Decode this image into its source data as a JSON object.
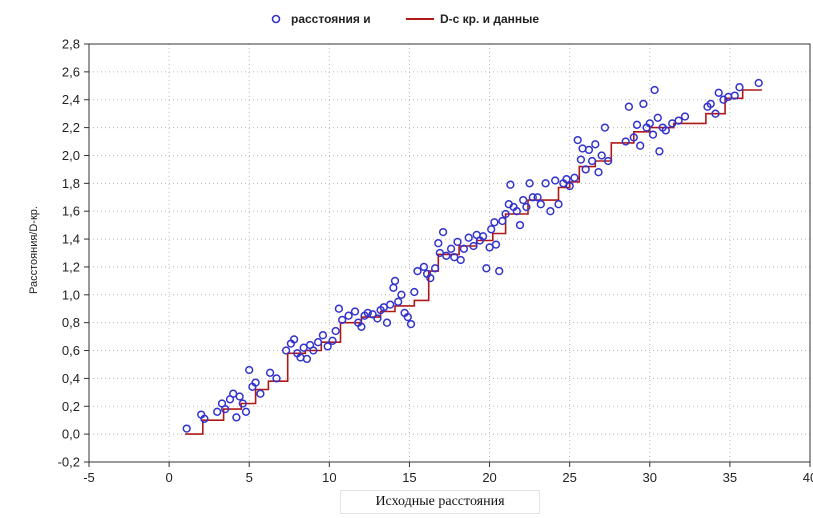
{
  "chart_data": {
    "type": "scatter",
    "title": "",
    "xlabel": "Исходные расстояния",
    "ylabel": "Расстояния/D-кр.",
    "xlim": [
      -5,
      40
    ],
    "ylim": [
      -0.2,
      2.8
    ],
    "xticks": [
      "-5",
      "0",
      "5",
      "10",
      "15",
      "20",
      "25",
      "30",
      "35",
      "40"
    ],
    "yticks": [
      "-0,2",
      "0,0",
      "0,2",
      "0,4",
      "0,6",
      "0,8",
      "1,0",
      "1,2",
      "1,4",
      "1,6",
      "1,8",
      "2,0",
      "2,2",
      "2,4",
      "2,6",
      "2,8"
    ],
    "grid": true,
    "legend_position": "top",
    "colors": {
      "points": "#3333cc",
      "step_line": "#b01818"
    },
    "series": [
      {
        "name": "расстояния и",
        "kind": "points",
        "points": [
          [
            1.1,
            0.04
          ],
          [
            2.0,
            0.14
          ],
          [
            2.2,
            0.11
          ],
          [
            3.0,
            0.16
          ],
          [
            3.3,
            0.22
          ],
          [
            3.5,
            0.18
          ],
          [
            3.8,
            0.25
          ],
          [
            4.0,
            0.29
          ],
          [
            4.2,
            0.12
          ],
          [
            4.4,
            0.27
          ],
          [
            4.6,
            0.22
          ],
          [
            4.8,
            0.16
          ],
          [
            5.0,
            0.46
          ],
          [
            5.2,
            0.34
          ],
          [
            5.4,
            0.37
          ],
          [
            5.7,
            0.29
          ],
          [
            6.3,
            0.44
          ],
          [
            6.7,
            0.4
          ],
          [
            7.3,
            0.6
          ],
          [
            7.6,
            0.65
          ],
          [
            7.8,
            0.68
          ],
          [
            8.0,
            0.58
          ],
          [
            8.2,
            0.55
          ],
          [
            8.4,
            0.62
          ],
          [
            8.6,
            0.54
          ],
          [
            8.8,
            0.64
          ],
          [
            9.0,
            0.6
          ],
          [
            9.3,
            0.66
          ],
          [
            9.6,
            0.71
          ],
          [
            9.9,
            0.63
          ],
          [
            10.2,
            0.67
          ],
          [
            10.4,
            0.74
          ],
          [
            10.6,
            0.9
          ],
          [
            10.8,
            0.82
          ],
          [
            11.2,
            0.85
          ],
          [
            11.6,
            0.88
          ],
          [
            11.8,
            0.8
          ],
          [
            12.0,
            0.77
          ],
          [
            12.2,
            0.85
          ],
          [
            12.4,
            0.87
          ],
          [
            12.7,
            0.86
          ],
          [
            13.0,
            0.83
          ],
          [
            13.2,
            0.89
          ],
          [
            13.4,
            0.91
          ],
          [
            13.6,
            0.8
          ],
          [
            13.8,
            0.93
          ],
          [
            14.0,
            1.05
          ],
          [
            14.1,
            1.1
          ],
          [
            14.3,
            0.95
          ],
          [
            14.5,
            1.0
          ],
          [
            14.7,
            0.87
          ],
          [
            14.9,
            0.84
          ],
          [
            15.1,
            0.79
          ],
          [
            15.3,
            1.02
          ],
          [
            15.5,
            1.17
          ],
          [
            15.9,
            1.2
          ],
          [
            16.1,
            1.15
          ],
          [
            16.3,
            1.12
          ],
          [
            16.6,
            1.19
          ],
          [
            16.8,
            1.37
          ],
          [
            16.9,
            1.3
          ],
          [
            17.1,
            1.45
          ],
          [
            17.3,
            1.28
          ],
          [
            17.6,
            1.33
          ],
          [
            17.8,
            1.27
          ],
          [
            18.0,
            1.38
          ],
          [
            18.2,
            1.25
          ],
          [
            18.4,
            1.33
          ],
          [
            18.7,
            1.41
          ],
          [
            19.0,
            1.35
          ],
          [
            19.2,
            1.43
          ],
          [
            19.4,
            1.39
          ],
          [
            19.6,
            1.42
          ],
          [
            19.8,
            1.19
          ],
          [
            20.0,
            1.34
          ],
          [
            20.1,
            1.47
          ],
          [
            20.3,
            1.52
          ],
          [
            20.4,
            1.36
          ],
          [
            20.6,
            1.17
          ],
          [
            20.8,
            1.53
          ],
          [
            21.0,
            1.58
          ],
          [
            21.2,
            1.65
          ],
          [
            21.3,
            1.79
          ],
          [
            21.5,
            1.63
          ],
          [
            21.7,
            1.6
          ],
          [
            21.9,
            1.5
          ],
          [
            22.1,
            1.68
          ],
          [
            22.3,
            1.63
          ],
          [
            22.5,
            1.8
          ],
          [
            22.7,
            1.7
          ],
          [
            23.0,
            1.7
          ],
          [
            23.2,
            1.65
          ],
          [
            23.5,
            1.8
          ],
          [
            23.8,
            1.6
          ],
          [
            24.1,
            1.82
          ],
          [
            24.3,
            1.65
          ],
          [
            24.6,
            1.8
          ],
          [
            24.8,
            1.83
          ],
          [
            25.0,
            1.78
          ],
          [
            25.3,
            1.84
          ],
          [
            25.5,
            2.11
          ],
          [
            25.7,
            1.97
          ],
          [
            25.8,
            2.05
          ],
          [
            26.0,
            1.9
          ],
          [
            26.2,
            2.04
          ],
          [
            26.4,
            1.96
          ],
          [
            26.6,
            2.08
          ],
          [
            26.8,
            1.88
          ],
          [
            27.0,
            2.0
          ],
          [
            27.2,
            2.2
          ],
          [
            27.4,
            1.96
          ],
          [
            28.5,
            2.1
          ],
          [
            28.7,
            2.35
          ],
          [
            29.0,
            2.13
          ],
          [
            29.2,
            2.22
          ],
          [
            29.4,
            2.07
          ],
          [
            29.6,
            2.37
          ],
          [
            29.8,
            2.2
          ],
          [
            30.0,
            2.23
          ],
          [
            30.2,
            2.15
          ],
          [
            30.3,
            2.47
          ],
          [
            30.5,
            2.27
          ],
          [
            30.6,
            2.03
          ],
          [
            30.8,
            2.2
          ],
          [
            31.0,
            2.18
          ],
          [
            31.4,
            2.23
          ],
          [
            31.8,
            2.25
          ],
          [
            32.2,
            2.28
          ],
          [
            33.6,
            2.35
          ],
          [
            33.8,
            2.37
          ],
          [
            34.1,
            2.3
          ],
          [
            34.3,
            2.45
          ],
          [
            34.6,
            2.4
          ],
          [
            34.9,
            2.42
          ],
          [
            35.3,
            2.43
          ],
          [
            35.6,
            2.49
          ],
          [
            36.8,
            2.52
          ]
        ]
      },
      {
        "name": "D-с кр. и данные",
        "kind": "step",
        "points": [
          [
            1.0,
            0.0
          ],
          [
            2.1,
            0.0
          ],
          [
            2.1,
            0.1
          ],
          [
            3.4,
            0.1
          ],
          [
            3.4,
            0.18
          ],
          [
            4.5,
            0.18
          ],
          [
            4.5,
            0.22
          ],
          [
            5.4,
            0.22
          ],
          [
            5.4,
            0.32
          ],
          [
            6.2,
            0.32
          ],
          [
            6.2,
            0.38
          ],
          [
            7.4,
            0.38
          ],
          [
            7.4,
            0.58
          ],
          [
            8.5,
            0.58
          ],
          [
            8.5,
            0.6
          ],
          [
            9.5,
            0.6
          ],
          [
            9.5,
            0.66
          ],
          [
            10.7,
            0.66
          ],
          [
            10.7,
            0.8
          ],
          [
            12.0,
            0.8
          ],
          [
            12.0,
            0.84
          ],
          [
            13.2,
            0.84
          ],
          [
            13.2,
            0.88
          ],
          [
            14.1,
            0.88
          ],
          [
            14.1,
            0.92
          ],
          [
            15.3,
            0.92
          ],
          [
            15.3,
            0.96
          ],
          [
            16.2,
            0.96
          ],
          [
            16.2,
            1.17
          ],
          [
            16.8,
            1.17
          ],
          [
            16.8,
            1.29
          ],
          [
            18.1,
            1.29
          ],
          [
            18.1,
            1.35
          ],
          [
            19.2,
            1.35
          ],
          [
            19.2,
            1.39
          ],
          [
            20.2,
            1.39
          ],
          [
            20.2,
            1.44
          ],
          [
            21.0,
            1.44
          ],
          [
            21.0,
            1.58
          ],
          [
            22.4,
            1.58
          ],
          [
            22.4,
            1.68
          ],
          [
            24.3,
            1.68
          ],
          [
            24.3,
            1.77
          ],
          [
            25.0,
            1.77
          ],
          [
            25.0,
            1.81
          ],
          [
            25.6,
            1.81
          ],
          [
            25.6,
            1.92
          ],
          [
            26.6,
            1.92
          ],
          [
            26.6,
            1.96
          ],
          [
            27.6,
            1.96
          ],
          [
            27.6,
            2.09
          ],
          [
            29.0,
            2.09
          ],
          [
            29.0,
            2.17
          ],
          [
            30.0,
            2.17
          ],
          [
            30.0,
            2.2
          ],
          [
            31.5,
            2.2
          ],
          [
            31.5,
            2.23
          ],
          [
            33.5,
            2.23
          ],
          [
            33.5,
            2.3
          ],
          [
            34.7,
            2.3
          ],
          [
            34.7,
            2.41
          ],
          [
            35.8,
            2.41
          ],
          [
            35.8,
            2.47
          ],
          [
            37.0,
            2.47
          ]
        ]
      }
    ]
  }
}
